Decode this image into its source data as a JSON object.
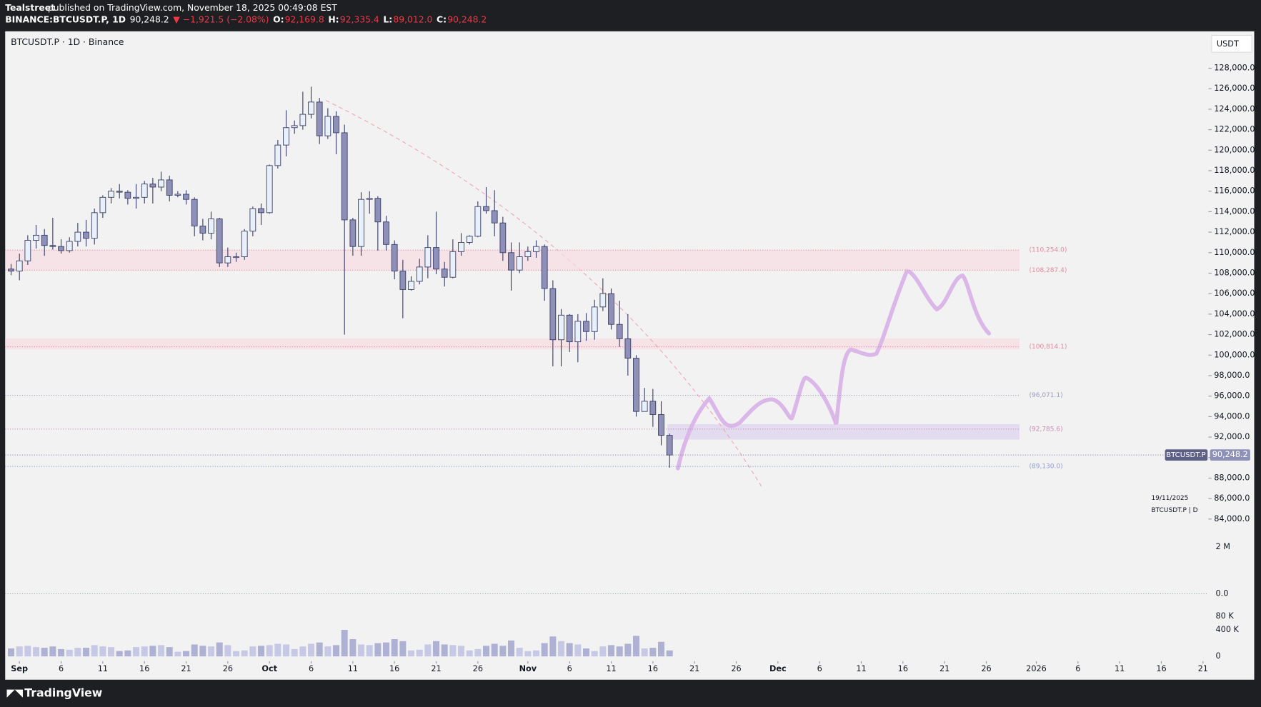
{
  "header": {
    "publisher": "Tealstreet",
    "published": "published on TradingView.com, November 18, 2025 00:49:08 EST",
    "symbol": "BINANCE:BTCUSDT.P, 1D",
    "last": "90,248.2",
    "change": "▼ −1,921.5 (−2.08%)",
    "ohlc": [
      {
        "label": "O:",
        "value": "92,169.8"
      },
      {
        "label": "H:",
        "value": "92,335.4"
      },
      {
        "label": "L:",
        "value": "89,012.0"
      },
      {
        "label": "C:",
        "value": "90,248.2"
      }
    ]
  },
  "chart_data": {
    "type": "candlestick",
    "title": "BTCUSDT.P · 1D · Binance",
    "currency": "USDT",
    "x": [
      "2025-08-31",
      "2025-09-01",
      "2025-09-02",
      "2025-09-03",
      "2025-09-04",
      "2025-09-05",
      "2025-09-06",
      "2025-09-07",
      "2025-09-08",
      "2025-09-09",
      "2025-09-10",
      "2025-09-11",
      "2025-09-12",
      "2025-09-13",
      "2025-09-14",
      "2025-09-15",
      "2025-09-16",
      "2025-09-17",
      "2025-09-18",
      "2025-09-19",
      "2025-09-20",
      "2025-09-21",
      "2025-09-22",
      "2025-09-23",
      "2025-09-24",
      "2025-09-25",
      "2025-09-26",
      "2025-09-27",
      "2025-09-28",
      "2025-09-29",
      "2025-09-30",
      "2025-10-01",
      "2025-10-02",
      "2025-10-03",
      "2025-10-04",
      "2025-10-05",
      "2025-10-06",
      "2025-10-07",
      "2025-10-08",
      "2025-10-09",
      "2025-10-10",
      "2025-10-11",
      "2025-10-12",
      "2025-10-13",
      "2025-10-14",
      "2025-10-15",
      "2025-10-16",
      "2025-10-17",
      "2025-10-18",
      "2025-10-19",
      "2025-10-20",
      "2025-10-21",
      "2025-10-22",
      "2025-10-23",
      "2025-10-24",
      "2025-10-25",
      "2025-10-26",
      "2025-10-27",
      "2025-10-28",
      "2025-10-29",
      "2025-10-30",
      "2025-10-31",
      "2025-11-01",
      "2025-11-02",
      "2025-11-03",
      "2025-11-04",
      "2025-11-05",
      "2025-11-06",
      "2025-11-07",
      "2025-11-08",
      "2025-11-09",
      "2025-11-10",
      "2025-11-11",
      "2025-11-12",
      "2025-11-13",
      "2025-11-14",
      "2025-11-15",
      "2025-11-16",
      "2025-11-17",
      "2025-11-18"
    ],
    "open": [
      108400,
      108200,
      109200,
      111200,
      111700,
      110700,
      110600,
      110200,
      111100,
      112000,
      111400,
      113900,
      115400,
      116000,
      115900,
      115300,
      115400,
      116700,
      116400,
      117100,
      115600,
      115700,
      115200,
      112600,
      111900,
      113300,
      109000,
      109600,
      109600,
      112100,
      114300,
      113900,
      118500,
      120500,
      122200,
      122400,
      123500,
      124700,
      121400,
      123300,
      121700,
      113200,
      110600,
      115200,
      115300,
      113000,
      110800,
      108200,
      106400,
      107200,
      108600,
      110500,
      108400,
      107600,
      110100,
      111000,
      111600,
      114500,
      114100,
      112900,
      110000,
      108300,
      109600,
      110100,
      110600,
      106500,
      101500,
      103900,
      101300,
      103300,
      102300,
      104700,
      106000,
      103000,
      101600,
      99700,
      94500,
      95500,
      94200,
      92169.8
    ],
    "high": [
      108900,
      109900,
      111700,
      112700,
      112300,
      113400,
      111300,
      111500,
      112900,
      113200,
      114300,
      115600,
      116300,
      116700,
      116100,
      116700,
      117000,
      117300,
      117900,
      117500,
      116000,
      116100,
      115400,
      113300,
      114000,
      113400,
      110500,
      110000,
      112300,
      114500,
      114800,
      118600,
      121000,
      123900,
      122900,
      125700,
      126200,
      125100,
      124100,
      123800,
      122500,
      113400,
      115900,
      116000,
      115500,
      113600,
      111200,
      109300,
      107700,
      109400,
      111700,
      114000,
      109100,
      111300,
      111900,
      111700,
      115000,
      116400,
      116100,
      113500,
      111000,
      111000,
      110600,
      111200,
      110800,
      107300,
      104500,
      104000,
      104000,
      104100,
      105400,
      107500,
      106500,
      105300,
      104000,
      100000,
      96800,
      96700,
      95500,
      92335.4
    ],
    "low": [
      107800,
      107300,
      108800,
      110400,
      109700,
      110300,
      109900,
      110000,
      110600,
      110600,
      110800,
      113400,
      114800,
      115300,
      114700,
      114300,
      114800,
      114800,
      116000,
      115000,
      115400,
      114700,
      111600,
      111200,
      111300,
      108600,
      108600,
      109100,
      109300,
      111600,
      112700,
      113800,
      118200,
      119400,
      121600,
      122000,
      123100,
      120600,
      121100,
      119600,
      102000,
      109700,
      109700,
      113800,
      110200,
      110200,
      107400,
      103600,
      106300,
      106900,
      107500,
      107900,
      106700,
      107500,
      109700,
      110800,
      111500,
      113800,
      111600,
      109200,
      106300,
      108000,
      109200,
      109500,
      105300,
      98900,
      98900,
      100300,
      99300,
      101400,
      101500,
      104300,
      102500,
      100800,
      98000,
      94000,
      94500,
      93000,
      91200,
      89012
    ],
    "close": [
      108200,
      109200,
      111200,
      111700,
      110700,
      110600,
      110200,
      111100,
      112000,
      111400,
      113900,
      115400,
      116000,
      115900,
      115300,
      115400,
      116700,
      116400,
      117100,
      115600,
      115700,
      115200,
      112600,
      111900,
      113300,
      109000,
      109600,
      109600,
      112100,
      114300,
      113900,
      118500,
      120500,
      122200,
      122400,
      123500,
      124700,
      121400,
      123300,
      121700,
      113200,
      110600,
      115200,
      115300,
      113000,
      110800,
      108200,
      106400,
      107200,
      108600,
      110500,
      108400,
      107600,
      110100,
      111000,
      111600,
      114500,
      114100,
      112900,
      110000,
      108300,
      109600,
      110100,
      110600,
      106500,
      101500,
      103900,
      101300,
      103300,
      102300,
      104700,
      106000,
      103000,
      101600,
      99700,
      94500,
      95500,
      94200,
      92169.8,
      90248.2
    ],
    "volume": [
      120000,
      150000,
      160000,
      140000,
      130000,
      150000,
      110000,
      100000,
      130000,
      130000,
      170000,
      150000,
      140000,
      80000,
      90000,
      140000,
      150000,
      160000,
      170000,
      140000,
      70000,
      80000,
      180000,
      160000,
      150000,
      210000,
      170000,
      80000,
      90000,
      150000,
      160000,
      170000,
      190000,
      180000,
      110000,
      150000,
      190000,
      210000,
      150000,
      170000,
      400000,
      260000,
      180000,
      170000,
      200000,
      210000,
      260000,
      230000,
      90000,
      100000,
      180000,
      230000,
      180000,
      170000,
      160000,
      90000,
      110000,
      160000,
      190000,
      160000,
      240000,
      130000,
      80000,
      90000,
      200000,
      300000,
      230000,
      200000,
      180000,
      120000,
      80000,
      150000,
      170000,
      150000,
      190000,
      310000,
      120000,
      130000,
      220000,
      90000
    ],
    "up_color": "#e8f1fb",
    "down_color": "#8e90b8",
    "outline_color": "#3b3e6b",
    "volume_color": "#aeb0d4",
    "ylim": [
      83300,
      131600
    ],
    "yticks": [
      {
        "value": 84000,
        "label": "84,000.0"
      },
      {
        "value": 86000,
        "label": "86,000.0"
      },
      {
        "value": 88000,
        "label": "88,000.0"
      },
      {
        "value": 90000,
        "label": "90,000.0"
      },
      {
        "value": 92000,
        "label": "92,000.0"
      },
      {
        "value": 94000,
        "label": "94,000.0"
      },
      {
        "value": 96000,
        "label": "96,000.0"
      },
      {
        "value": 98000,
        "label": "98,000.0"
      },
      {
        "value": 100000,
        "label": "100,000.0"
      },
      {
        "value": 102000,
        "label": "102,000.0"
      },
      {
        "value": 104000,
        "label": "104,000.0"
      },
      {
        "value": 106000,
        "label": "106,000.0"
      },
      {
        "value": 108000,
        "label": "108,000.0"
      },
      {
        "value": 110000,
        "label": "110,000.0"
      },
      {
        "value": 112000,
        "label": "112,000.0"
      },
      {
        "value": 114000,
        "label": "114,000.0"
      },
      {
        "value": 116000,
        "label": "116,000.0"
      },
      {
        "value": 118000,
        "label": "118,000.0"
      },
      {
        "value": 120000,
        "label": "120,000.0"
      },
      {
        "value": 122000,
        "label": "122,000.0"
      },
      {
        "value": 124000,
        "label": "124,000.0"
      },
      {
        "value": 126000,
        "label": "126,000.0"
      },
      {
        "value": 128000,
        "label": "128,000.0"
      }
    ],
    "xlim": [
      "2025-08-30",
      "2026-01-22"
    ],
    "xticks": [
      {
        "value": "2025-09-01",
        "label": "Sep"
      },
      {
        "value": "2025-09-06",
        "label": "6"
      },
      {
        "value": "2025-09-11",
        "label": "11"
      },
      {
        "value": "2025-09-16",
        "label": "16"
      },
      {
        "value": "2025-09-21",
        "label": "21"
      },
      {
        "value": "2025-09-26",
        "label": "26"
      },
      {
        "value": "2025-10-01",
        "label": "Oct"
      },
      {
        "value": "2025-10-06",
        "label": "6"
      },
      {
        "value": "2025-10-11",
        "label": "11"
      },
      {
        "value": "2025-10-16",
        "label": "16"
      },
      {
        "value": "2025-10-21",
        "label": "21"
      },
      {
        "value": "2025-10-26",
        "label": "26"
      },
      {
        "value": "2025-11-01",
        "label": "Nov"
      },
      {
        "value": "2025-11-06",
        "label": "6"
      },
      {
        "value": "2025-11-11",
        "label": "11"
      },
      {
        "value": "2025-11-16",
        "label": "16"
      },
      {
        "value": "2025-11-21",
        "label": "21"
      },
      {
        "value": "2025-11-26",
        "label": "26"
      },
      {
        "value": "2025-12-01",
        "label": "Dec"
      },
      {
        "value": "2025-12-06",
        "label": "6"
      },
      {
        "value": "2025-12-11",
        "label": "11"
      },
      {
        "value": "2025-12-16",
        "label": "16"
      },
      {
        "value": "2025-12-21",
        "label": "21"
      },
      {
        "value": "2025-12-26",
        "label": "26"
      },
      {
        "value": "2026-01-01",
        "label": "2026"
      },
      {
        "value": "2026-01-06",
        "label": "6"
      },
      {
        "value": "2026-01-11",
        "label": "11"
      },
      {
        "value": "2026-01-16",
        "label": "16"
      },
      {
        "value": "2026-01-21",
        "label": "21"
      }
    ],
    "levels": [
      {
        "value": 110254,
        "label": "(110,254.0)",
        "color": "#e8879f"
      },
      {
        "value": 108287.4,
        "label": "(108,287.4)",
        "color": "#e8879f"
      },
      {
        "value": 100814.1,
        "label": "(100,814.1)",
        "color": "#e8879f"
      },
      {
        "value": 96071.1,
        "label": "(96,071.1)",
        "color": "#9a9cc4"
      },
      {
        "value": 92785.6,
        "label": "(92,785.6)",
        "color": "#c78ab5"
      },
      {
        "value": 89130,
        "label": "(89,130.0)",
        "color": "#8c9ad8"
      }
    ],
    "last_price": {
      "name": "BTCUSDT.P",
      "label": "90,248.2"
    },
    "info_date": "19/11/2025",
    "info_symbol": "BTCUSDT.P | D",
    "pane_labels": [
      "2 M",
      "0.0",
      "80 K"
    ],
    "volume_ylim": [
      0,
      400000
    ],
    "volume_yticks": [
      {
        "value": 400000,
        "label": "400 K"
      },
      0
    ]
  },
  "footer": {
    "brand": "TradingView"
  }
}
